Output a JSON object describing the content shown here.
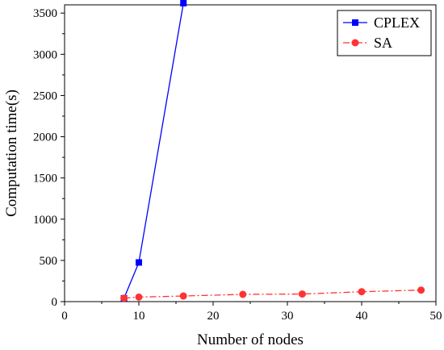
{
  "chart_data": {
    "type": "line",
    "xlabel": "Number of nodes",
    "ylabel": "Computation time(s)",
    "xlim": [
      0,
      50
    ],
    "ylim": [
      0,
      3600
    ],
    "xticks": [
      0,
      10,
      20,
      30,
      40,
      50
    ],
    "yticks": [
      0,
      500,
      1000,
      1500,
      2000,
      2500,
      3000,
      3500
    ],
    "grid": false,
    "legend_position": "top-right",
    "series": [
      {
        "name": "CPLEX",
        "color": "#0000ff",
        "marker": "square",
        "line_style": "solid",
        "x": [
          8,
          10,
          16
        ],
        "y": [
          40,
          475,
          3620
        ]
      },
      {
        "name": "SA",
        "color": "#ff3333",
        "marker": "circle",
        "line_style": "dash-dot",
        "x": [
          8,
          10,
          16,
          24,
          32,
          40,
          48
        ],
        "y": [
          42,
          55,
          68,
          88,
          92,
          120,
          140
        ]
      }
    ]
  }
}
